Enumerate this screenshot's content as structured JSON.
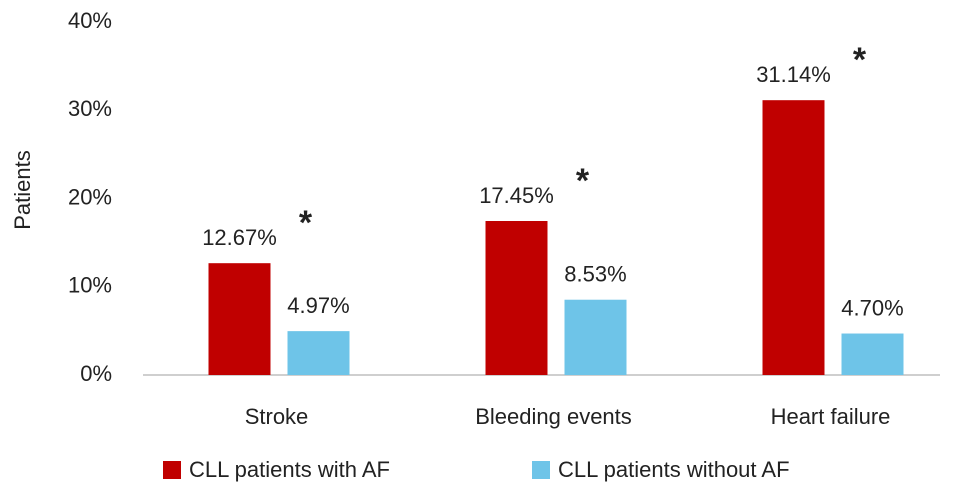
{
  "chart_data": {
    "type": "bar",
    "ylabel": "Patients",
    "categories": [
      "Stroke",
      "Bleeding events",
      "Heart failure"
    ],
    "series": [
      {
        "name": "CLL patients with AF",
        "color": "#c00000",
        "values": [
          12.67,
          17.45,
          31.14
        ],
        "value_labels": [
          "12.67%",
          "17.45%",
          "31.14%"
        ]
      },
      {
        "name": "CLL patients without AF",
        "color": "#6ec4e8",
        "values": [
          4.97,
          8.53,
          4.7
        ],
        "value_labels": [
          "4.97%",
          "8.53%",
          "4.70%"
        ]
      }
    ],
    "significance": [
      "*",
      "*",
      "*"
    ],
    "ylim": [
      0,
      40
    ],
    "yticks": [
      {
        "value": 0,
        "label": "0%"
      },
      {
        "value": 10,
        "label": "10%"
      },
      {
        "value": 20,
        "label": "20%"
      },
      {
        "value": 30,
        "label": "30%"
      },
      {
        "value": 40,
        "label": "40%"
      }
    ],
    "grid": false,
    "legend": "bottom"
  }
}
